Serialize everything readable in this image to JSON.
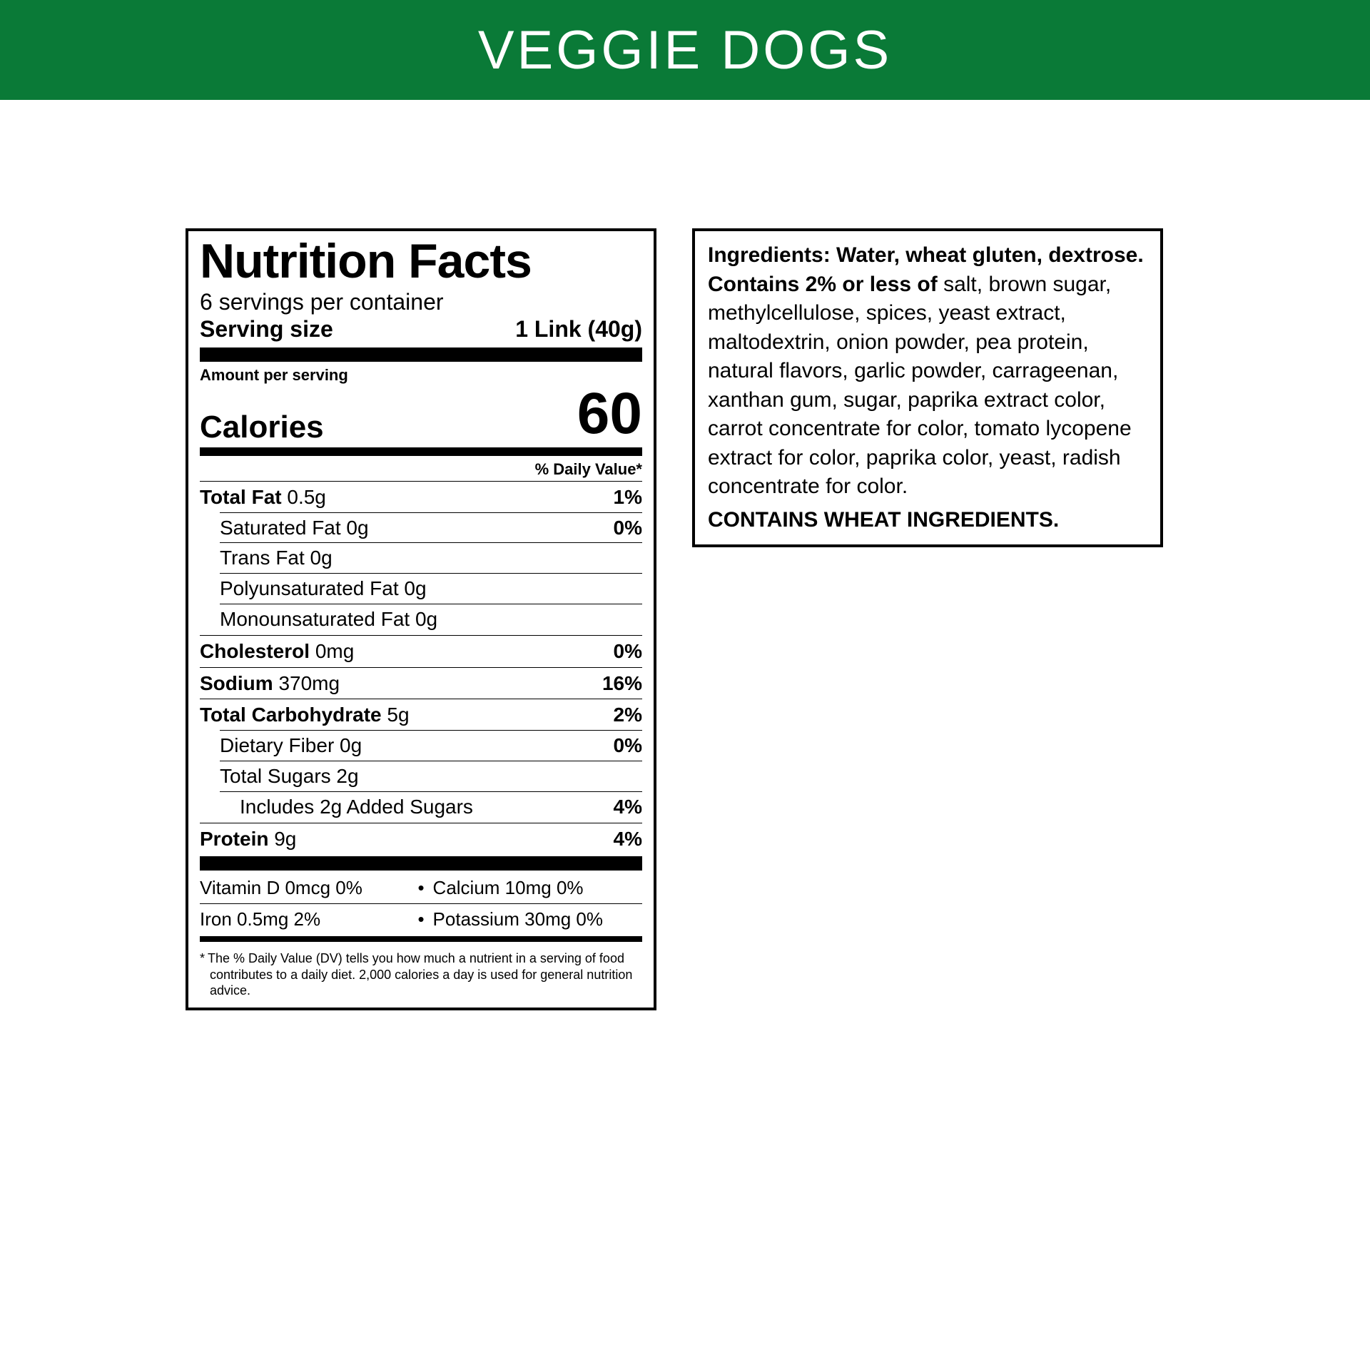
{
  "header": {
    "title": "VEGGIE DOGS",
    "bg_color": "#0a7a37",
    "text_color": "#ffffff"
  },
  "nutrition": {
    "title": "Nutrition Facts",
    "servings_per_container": "6 servings per container",
    "serving_size_label": "Serving size",
    "serving_size_value": "1 Link (40g)",
    "amount_per_serving": "Amount per serving",
    "calories_label": "Calories",
    "calories_value": "60",
    "dv_header": "% Daily Value*",
    "rows": [
      {
        "name": "Total Fat",
        "amount": "0.5g",
        "dv": "1%",
        "bold": true,
        "indent": 0
      },
      {
        "name": "Saturated Fat",
        "amount": "0g",
        "dv": "0%",
        "bold": false,
        "indent": 1
      },
      {
        "name": "Trans Fat",
        "amount": "0g",
        "dv": "",
        "bold": false,
        "indent": 1
      },
      {
        "name": "Polyunsaturated Fat",
        "amount": "0g",
        "dv": "",
        "bold": false,
        "indent": 1
      },
      {
        "name": "Monounsaturated Fat",
        "amount": "0g",
        "dv": "",
        "bold": false,
        "indent": 1
      },
      {
        "name": "Cholesterol",
        "amount": "0mg",
        "dv": "0%",
        "bold": true,
        "indent": 0
      },
      {
        "name": "Sodium",
        "amount": "370mg",
        "dv": "16%",
        "bold": true,
        "indent": 0
      },
      {
        "name": "Total Carbohydrate",
        "amount": "5g",
        "dv": "2%",
        "bold": true,
        "indent": 0
      },
      {
        "name": "Dietary Fiber",
        "amount": "0g",
        "dv": "0%",
        "bold": false,
        "indent": 1
      },
      {
        "name": "Total Sugars",
        "amount": "2g",
        "dv": "",
        "bold": false,
        "indent": 1
      },
      {
        "name": "Includes 2g Added Sugars",
        "amount": "",
        "dv": "4%",
        "bold": false,
        "indent": 2
      },
      {
        "name": "Protein",
        "amount": "9g",
        "dv": "4%",
        "bold": true,
        "indent": 0
      }
    ],
    "vitamins": [
      {
        "left": "Vitamin D 0mcg 0%",
        "right": "Calcium 10mg 0%"
      },
      {
        "left": "Iron 0.5mg 2%",
        "right": "Potassium 30mg 0%"
      }
    ],
    "footnote": "The % Daily Value (DV) tells you how much a nutrient in a serving of food contributes to a daily diet. 2,000 calories a day is used for general nutrition advice."
  },
  "ingredients": {
    "lead": "Ingredients: Water, wheat gluten, dextrose. Contains 2% or less of",
    "body": " salt, brown sugar, methylcellulose, spices, yeast extract, maltodextrin, onion powder, pea protein, natural flavors, garlic powder, carrageenan, xanthan gum, sugar, paprika extract color, carrot concentrate for color, tomato lycopene extract for color, paprika color, yeast, radish concentrate for color.",
    "allergen": "CONTAINS WHEAT INGREDIENTS."
  }
}
